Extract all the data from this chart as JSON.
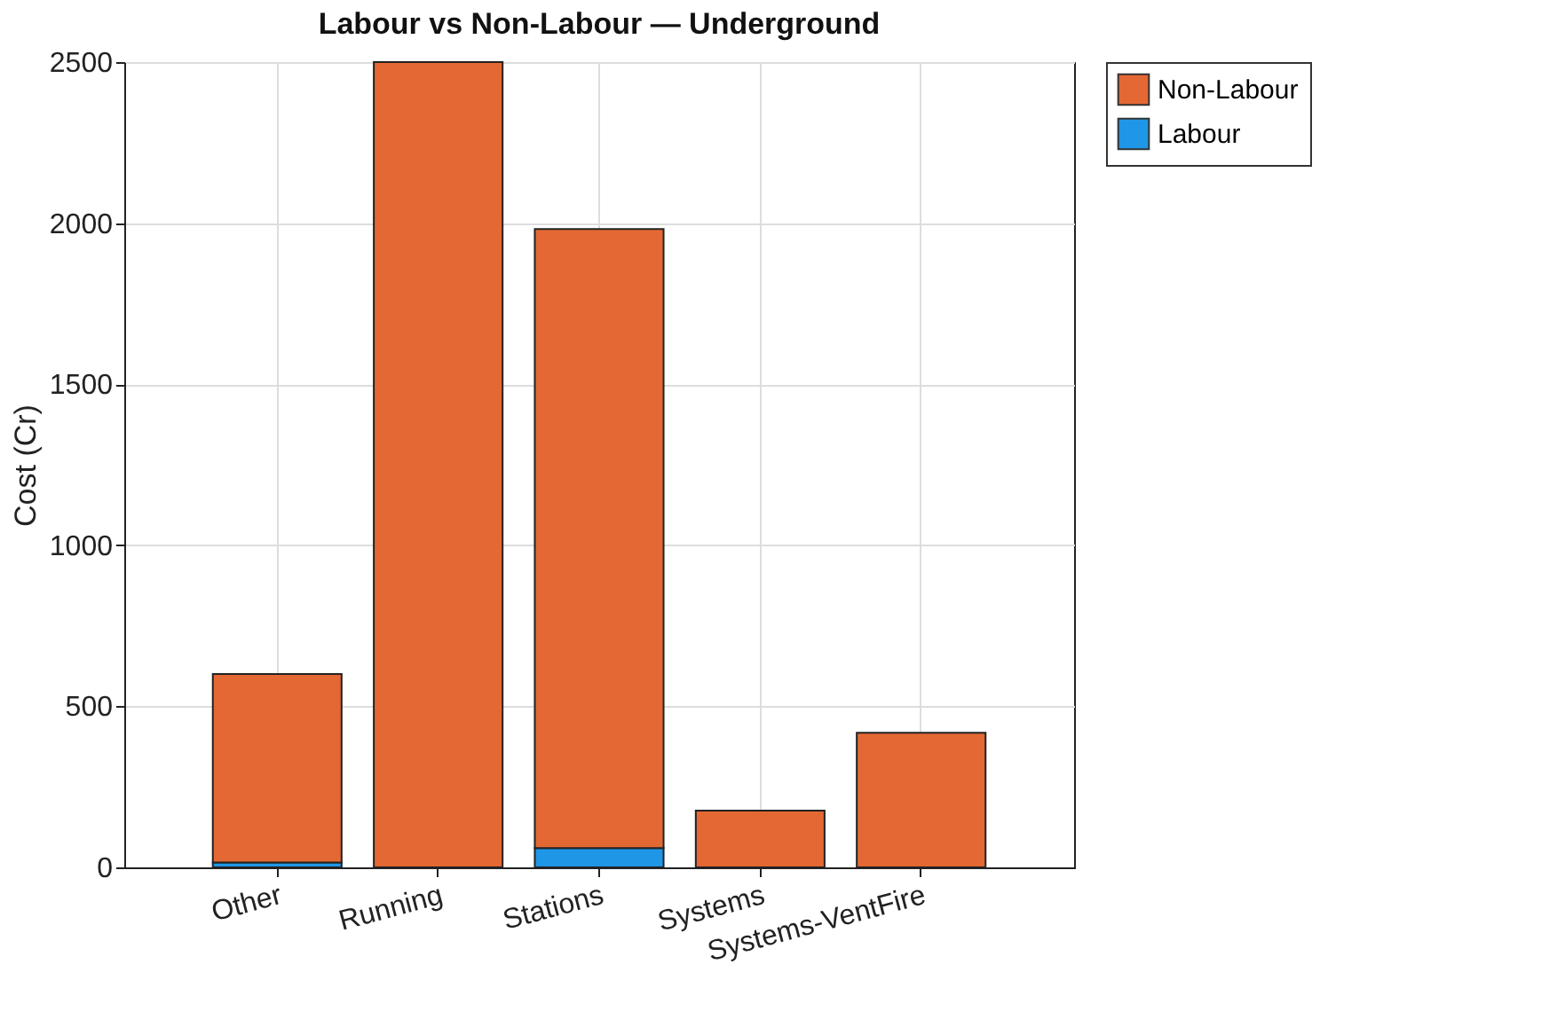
{
  "chart_data": {
    "type": "bar",
    "title": "Labour vs Non-Labour — Underground",
    "ylabel": "Cost (Cr)",
    "categories": [
      "Other",
      "Running",
      "Stations",
      "Systems",
      "Systems-VentFire"
    ],
    "stacked": true,
    "series": [
      {
        "name": "Labour",
        "color": "#1f96e6",
        "values": [
          15,
          null,
          60,
          0,
          0
        ]
      },
      {
        "name": "Non-Labour",
        "color": "#e46834",
        "values": [
          585,
          2500,
          1922,
          176,
          418
        ]
      }
    ],
    "ylim": [
      0,
      2500
    ],
    "yticks": [
      0,
      500,
      1000,
      1500,
      2000,
      2500
    ],
    "grid": true,
    "legend": "top right"
  }
}
